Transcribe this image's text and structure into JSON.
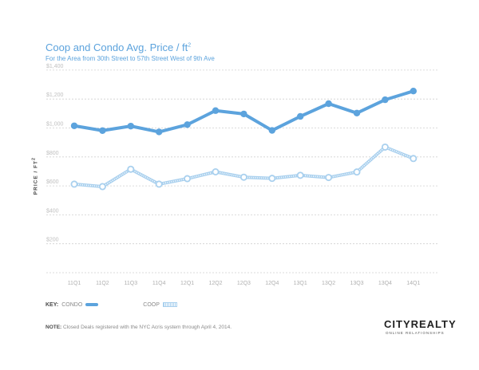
{
  "title_main": "Coop and Condo Avg. Price / ft",
  "title_sup": "2",
  "subtitle": "For the Area from 30th Street to 57th Street West of 9th Ave",
  "ylabel_main": "PRICE / FT",
  "ylabel_sup": "2",
  "key": {
    "label": "KEY:",
    "condo": "CONDO",
    "coop": "COOP"
  },
  "note": {
    "label": "NOTE:",
    "text": "Closed Deals registered with the NYC Acris system through April 4, 2014."
  },
  "logo": "CITYREALTY",
  "tagline": "ONLINE RELATIONSHIPS",
  "colors": {
    "condo": "#5ca3dd",
    "coop": "#a9d0ee",
    "grid": "#d0d0d0"
  },
  "chart_data": {
    "type": "line",
    "title": "Coop and Condo Avg. Price / ft²",
    "subtitle": "For the Area from 30th Street to 57th Street West of 9th Ave",
    "xlabel": "",
    "ylabel": "PRICE / FT²",
    "categories": [
      "11Q1",
      "11Q2",
      "11Q3",
      "11Q4",
      "12Q1",
      "12Q2",
      "12Q3",
      "12Q4",
      "13Q1",
      "13Q2",
      "13Q3",
      "13Q4",
      "14Q1"
    ],
    "ylim": [
      0,
      1400
    ],
    "yticks": [
      200,
      400,
      600,
      800,
      1000,
      1200,
      1400
    ],
    "ytick_labels": [
      "$200",
      "$400",
      "$600",
      "$800",
      "$1,000",
      "$1,200",
      "$1,400"
    ],
    "grid": true,
    "legend_position": "bottom-left",
    "series": [
      {
        "name": "CONDO",
        "values": [
          1015,
          982,
          1013,
          973,
          1023,
          1120,
          1097,
          983,
          1080,
          1168,
          1103,
          1195,
          1255
        ]
      },
      {
        "name": "COOP",
        "values": [
          612,
          595,
          715,
          612,
          650,
          697,
          660,
          652,
          673,
          658,
          696,
          868,
          789
        ]
      }
    ]
  }
}
